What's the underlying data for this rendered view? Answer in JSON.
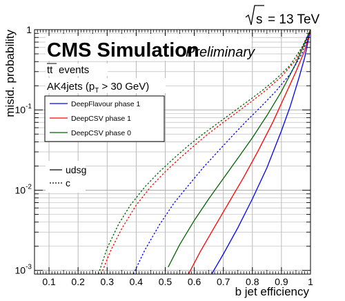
{
  "chart_data": {
    "type": "line",
    "energy_label": "= 13 TeV",
    "energy_prefix": "s",
    "title": "CMS Simulation",
    "title_suffix": "Preliminary",
    "sample_label": "events",
    "sample_prefix": "tt",
    "jet_label_prefix": "AK4jets (p",
    "jet_label_sub": "T",
    "jet_label_suffix": " > 30 GeV)",
    "xlabel": "b jet efficiency",
    "ylabel": "misid. probability",
    "xlim": [
      0.05,
      1.0
    ],
    "ylim": [
      0.0009,
      1.0
    ],
    "yscale": "log",
    "grid": true,
    "x_ticks": [
      0.1,
      0.2,
      0.3,
      0.4,
      0.5,
      0.6,
      0.7,
      0.8,
      0.9,
      1.0
    ],
    "x_tick_labels": [
      "0.1",
      "0.2",
      "0.3",
      "0.4",
      "0.5",
      "0.6",
      "0.7",
      "0.8",
      "0.9",
      "1"
    ],
    "y_ticks": [
      {
        "value": 0.001,
        "base": "10",
        "exp": "-3"
      },
      {
        "value": 0.01,
        "base": "10",
        "exp": "-2"
      },
      {
        "value": 0.1,
        "base": "10",
        "exp": "-1"
      },
      {
        "value": 1,
        "base": "1",
        "exp": ""
      }
    ],
    "legend_taggers": [
      {
        "name": "DeepFlavour phase 1",
        "color": "#0000ff"
      },
      {
        "name": "DeepCSV phase 1",
        "color": "#ff0000"
      },
      {
        "name": "DeepCSV phase 0",
        "color": "#006400"
      }
    ],
    "legend_styles": [
      {
        "name": "udsg",
        "dash": "solid"
      },
      {
        "name": "c",
        "dash": "dotted"
      }
    ],
    "series": [
      {
        "tagger": "DeepFlavour phase 1",
        "flavour": "udsg",
        "color": "#0000ff",
        "dash": "solid",
        "x": [
          0.66,
          0.7,
          0.75,
          0.8,
          0.85,
          0.9,
          0.93,
          0.96,
          0.98,
          1.0
        ],
        "y": [
          0.0009,
          0.0016,
          0.0034,
          0.0078,
          0.019,
          0.055,
          0.11,
          0.25,
          0.45,
          1.0
        ]
      },
      {
        "tagger": "DeepCSV phase 1",
        "flavour": "udsg",
        "color": "#ff0000",
        "dash": "solid",
        "x": [
          0.58,
          0.62,
          0.67,
          0.72,
          0.77,
          0.82,
          0.87,
          0.91,
          0.95,
          0.98,
          1.0
        ],
        "y": [
          0.0009,
          0.0017,
          0.0035,
          0.0071,
          0.0145,
          0.031,
          0.07,
          0.145,
          0.3,
          0.55,
          1.0
        ]
      },
      {
        "tagger": "DeepCSV phase 0",
        "flavour": "udsg",
        "color": "#006400",
        "dash": "solid",
        "x": [
          0.51,
          0.55,
          0.6,
          0.65,
          0.7,
          0.75,
          0.8,
          0.85,
          0.9,
          0.95,
          1.0
        ],
        "y": [
          0.0011,
          0.0021,
          0.0042,
          0.0078,
          0.014,
          0.025,
          0.045,
          0.085,
          0.17,
          0.38,
          1.0
        ]
      },
      {
        "tagger": "DeepFlavour phase 1",
        "flavour": "c",
        "color": "#0000ff",
        "dash": "dotted",
        "x": [
          0.39,
          0.43,
          0.48,
          0.53,
          0.58,
          0.63,
          0.68,
          0.73,
          0.78,
          0.83,
          0.88,
          0.93,
          0.97,
          1.0
        ],
        "y": [
          0.0009,
          0.0018,
          0.0037,
          0.0069,
          0.0115,
          0.019,
          0.03,
          0.047,
          0.073,
          0.11,
          0.17,
          0.28,
          0.5,
          1.0
        ]
      },
      {
        "tagger": "DeepCSV phase 1",
        "flavour": "c",
        "color": "#ff0000",
        "dash": "dotted",
        "x": [
          0.28,
          0.31,
          0.35,
          0.4,
          0.45,
          0.5,
          0.55,
          0.6,
          0.65,
          0.7,
          0.75,
          0.8,
          0.85,
          0.9,
          0.95,
          1.0
        ],
        "y": [
          0.0009,
          0.0017,
          0.0033,
          0.0065,
          0.011,
          0.017,
          0.025,
          0.036,
          0.051,
          0.07,
          0.095,
          0.13,
          0.18,
          0.26,
          0.42,
          1.0
        ]
      },
      {
        "tagger": "DeepCSV phase 0",
        "flavour": "c",
        "color": "#006400",
        "dash": "dotted",
        "x": [
          0.27,
          0.3,
          0.34,
          0.38,
          0.43,
          0.48,
          0.53,
          0.58,
          0.63,
          0.68,
          0.73,
          0.78,
          0.83,
          0.88,
          0.93,
          0.97,
          1.0
        ],
        "y": [
          0.0009,
          0.0019,
          0.0038,
          0.0065,
          0.011,
          0.017,
          0.025,
          0.036,
          0.05,
          0.068,
          0.092,
          0.125,
          0.17,
          0.24,
          0.36,
          0.6,
          1.0
        ]
      }
    ]
  }
}
